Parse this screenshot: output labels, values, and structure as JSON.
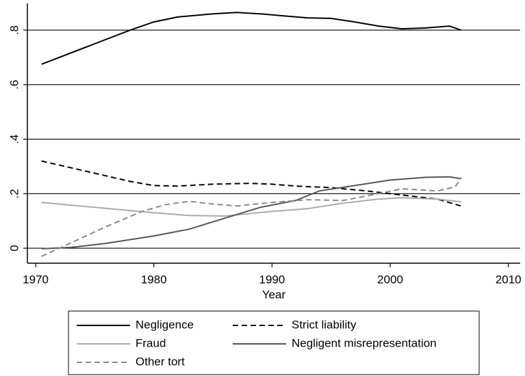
{
  "chart_data": {
    "type": "line",
    "xlabel": "Year",
    "xlim": [
      1969.3,
      2011.0
    ],
    "ylim": [
      -0.055,
      0.898
    ],
    "xticks": [
      1970,
      1980,
      1990,
      2000,
      2010
    ],
    "yticks": [
      0,
      {
        "value": 0.2,
        "label": ".2"
      },
      {
        "value": 0.4,
        "label": ".4"
      },
      {
        "value": 0.6,
        "label": ".6"
      },
      {
        "value": 0.8,
        "label": ".8"
      }
    ],
    "grid": true,
    "legend": "bottom",
    "series": [
      {
        "name": "Negligence",
        "color": "#000000",
        "dash": false,
        "x": [
          1970.5,
          1975,
          1978,
          1980,
          1982,
          1985,
          1987,
          1989,
          1991,
          1993,
          1995,
          1997,
          1999,
          2001,
          2003,
          2005,
          2006
        ],
        "values": [
          0.675,
          0.75,
          0.8,
          0.83,
          0.848,
          0.86,
          0.865,
          0.86,
          0.852,
          0.845,
          0.843,
          0.83,
          0.815,
          0.805,
          0.808,
          0.815,
          0.8
        ]
      },
      {
        "name": "Strict liability",
        "color": "#000000",
        "dash": true,
        "x": [
          1970.5,
          1975,
          1978,
          1980,
          1982,
          1985,
          1988,
          1990,
          1992,
          1995,
          1998,
          2001,
          2004,
          2006
        ],
        "values": [
          0.32,
          0.275,
          0.245,
          0.23,
          0.228,
          0.235,
          0.238,
          0.235,
          0.228,
          0.222,
          0.21,
          0.195,
          0.18,
          0.155
        ]
      },
      {
        "name": "Fraud",
        "color": "#aaaaaa",
        "dash": false,
        "x": [
          1970.5,
          1975,
          1980,
          1983,
          1986,
          1990,
          1993,
          1996,
          1999,
          2001,
          2004,
          2006
        ],
        "values": [
          0.168,
          0.15,
          0.13,
          0.12,
          0.118,
          0.135,
          0.145,
          0.165,
          0.18,
          0.185,
          0.18,
          0.17
        ]
      },
      {
        "name": "Negligent misrepresentation",
        "color": "#555555",
        "dash": false,
        "x": [
          1970.5,
          1973,
          1976,
          1980,
          1983,
          1986,
          1989,
          1992,
          1994,
          1997,
          2000,
          2003,
          2005,
          2006
        ],
        "values": [
          -0.002,
          0.003,
          0.018,
          0.045,
          0.07,
          0.11,
          0.15,
          0.175,
          0.21,
          0.23,
          0.25,
          0.26,
          0.262,
          0.255
        ]
      },
      {
        "name": "Other tort",
        "color": "#888888",
        "dash": true,
        "x": [
          1970.5,
          1973,
          1976,
          1979,
          1981,
          1983,
          1985,
          1987,
          1990,
          1993,
          1996,
          1999,
          2001,
          2004,
          2005.5,
          2006
        ],
        "values": [
          -0.03,
          0.02,
          0.08,
          0.135,
          0.16,
          0.172,
          0.162,
          0.155,
          0.168,
          0.178,
          0.175,
          0.2,
          0.218,
          0.21,
          0.225,
          0.26
        ]
      }
    ]
  }
}
